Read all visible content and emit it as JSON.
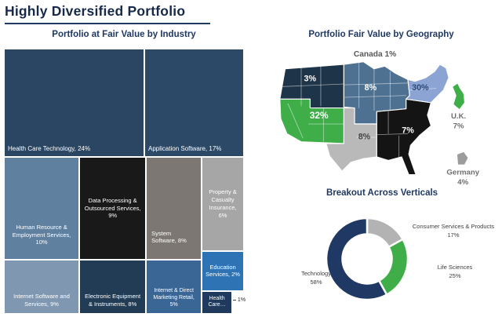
{
  "title": "Highly Diversified Portfolio",
  "chart_data": [
    {
      "type": "treemap",
      "title": "Portfolio at Fair Value by Industry",
      "items": [
        {
          "name": "Health Care Technology",
          "value": 24,
          "label": "Health Care Technology, 24%",
          "color": "#2a4663"
        },
        {
          "name": "Application Software",
          "value": 17,
          "label": "Application Software, 17%",
          "color": "#2c4a68"
        },
        {
          "name": "Human Resource & Employment Services",
          "value": 10,
          "label": "Human Resource & Employment Services, 10%",
          "color": "#60809f"
        },
        {
          "name": "Data Processing & Outsourced Services",
          "value": 9,
          "label": "Data Processing & Outsourced Services, 9%",
          "color": "#191919"
        },
        {
          "name": "System Software",
          "value": 8,
          "label": "System Software, 8%",
          "color": "#7c7772"
        },
        {
          "name": "Property & Casualty Insurance",
          "value": 6,
          "label": "Property & Casualty Insurance, 6%",
          "color": "#a6a6a6"
        },
        {
          "name": "Internet Software and Services",
          "value": 9,
          "label": "Internet Software and Services, 9%",
          "color": "#8097b1"
        },
        {
          "name": "Electronic Equipment & Instruments",
          "value": 8,
          "label": "Electronic Equipment & Instruments, 8%",
          "color": "#233c55"
        },
        {
          "name": "Internet & Direct Marketing Retail",
          "value": 5,
          "label": "Internet & Direct Marketing Retail, 5%",
          "color": "#3a6695"
        },
        {
          "name": "Education Services",
          "value": 2,
          "label": "Education Services, 2%",
          "color": "#2e74b5"
        },
        {
          "name": "Health Care",
          "value": 1,
          "label": "Health Care…",
          "callout": "1%",
          "color": "#1f3a5c"
        }
      ]
    },
    {
      "type": "choropleth",
      "title": "Portfolio Fair Value by Geography",
      "regions": [
        {
          "area": "Canada",
          "value": 1,
          "display": "Canada 1%"
        },
        {
          "area": "Northwest / Mountain",
          "value": 3,
          "display": "3%",
          "color": "#1d3449"
        },
        {
          "area": "West",
          "value": 32,
          "display": "32%",
          "color": "#3fae49"
        },
        {
          "area": "Upper Midwest",
          "value": 8,
          "display": "8%",
          "color": "#4f7191"
        },
        {
          "area": "Northeast",
          "value": 30,
          "display": "30%",
          "color": "#8ba4d3"
        },
        {
          "area": "South Central",
          "value": 8,
          "display": "8%",
          "color": "#b9b9b9"
        },
        {
          "area": "Southeast",
          "value": 7,
          "display": "7%",
          "color": "#141414"
        },
        {
          "area": "U.K.",
          "value": 7,
          "display": "U.K.",
          "value_display": "7%",
          "color": "#3fae49"
        },
        {
          "area": "Germany",
          "value": 4,
          "display": "Germany",
          "value_display": "4%",
          "color": "#9c9c9c"
        }
      ]
    },
    {
      "type": "donut",
      "title": "Breakout Across Verticals",
      "segments": [
        {
          "label": "Consumer Services & Products",
          "value": 17,
          "display": "17%",
          "color": "#b3b3b3"
        },
        {
          "label": "Life Sciences",
          "value": 25,
          "display": "25%",
          "color": "#3fae49"
        },
        {
          "label": "Technology",
          "value": 58,
          "display": "58%",
          "color": "#1f3864"
        }
      ]
    }
  ]
}
